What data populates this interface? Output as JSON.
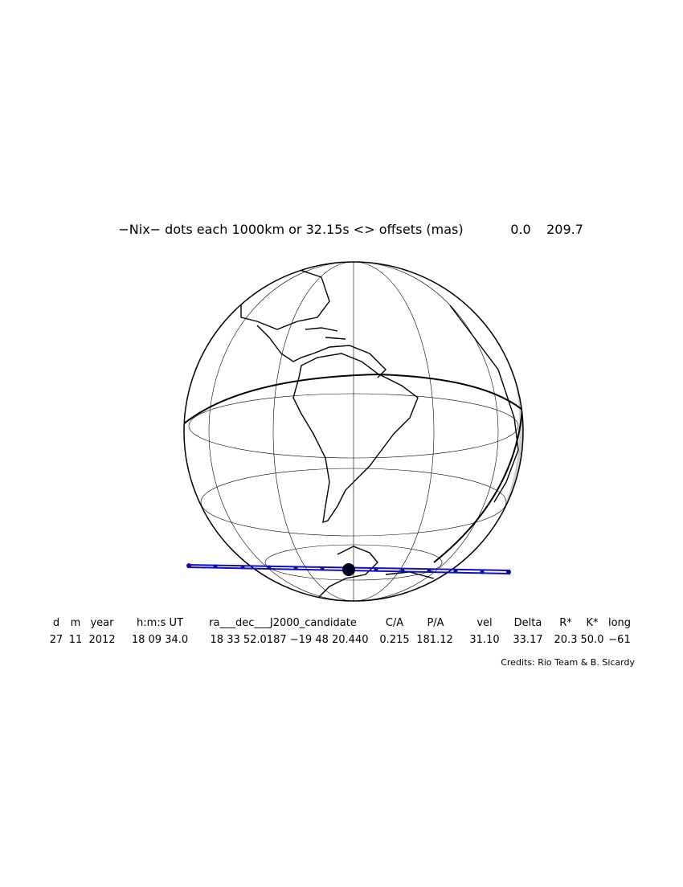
{
  "header": {
    "title": "−Nix− dots each 1000km or 32.15s <> offsets (mas)",
    "offsets": [
      "0.0",
      "209.7"
    ]
  },
  "table": {
    "headers": [
      "d",
      "m",
      "year",
      "h:m:s UT",
      "ra___dec___J2000_candidate",
      "C/A",
      "P/A",
      "vel",
      "Delta",
      "R*",
      "K*",
      "long"
    ],
    "rows": [
      [
        "27",
        "11",
        "2012",
        "18 09 34.0",
        "18 33 52.0187 −19 48 20.440",
        "0.215",
        "181.12",
        "31.10",
        "33.17",
        "20.3",
        "50.0",
        "−61"
      ]
    ]
  },
  "credits": "Credits: Rio Team & B. Sicardy"
}
